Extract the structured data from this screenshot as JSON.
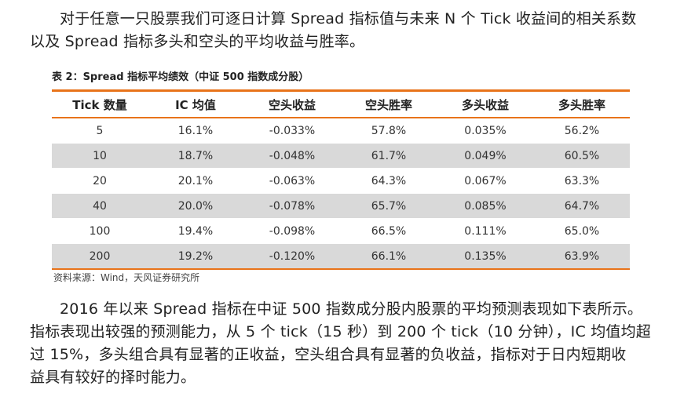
{
  "intro": {
    "line1": "对于任意一只股票我们可逐日计算 Spread 指标值与未来 N 个 Tick 收益间的相关系数",
    "line2": "以及 Spread 指标多头和空头的平均收益与胜率。"
  },
  "table": {
    "caption": "表 2：Spread 指标平均绩效（中证 500 指数成分股）",
    "headers": [
      "Tick 数量",
      "IC 均值",
      "空头收益",
      "空头胜率",
      "多头收益",
      "多头胜率"
    ],
    "rows": [
      [
        "5",
        "16.1%",
        "-0.033%",
        "57.8%",
        "0.035%",
        "56.2%"
      ],
      [
        "10",
        "18.7%",
        "-0.048%",
        "61.7%",
        "0.049%",
        "60.5%"
      ],
      [
        "20",
        "20.1%",
        "-0.063%",
        "64.3%",
        "0.067%",
        "63.3%"
      ],
      [
        "40",
        "20.0%",
        "-0.078%",
        "65.7%",
        "0.085%",
        "64.7%"
      ],
      [
        "100",
        "19.4%",
        "-0.098%",
        "66.5%",
        "0.111%",
        "65.0%"
      ],
      [
        "200",
        "19.2%",
        "-0.120%",
        "66.1%",
        "0.135%",
        "63.9%"
      ]
    ],
    "source": "资料来源：Wind，天风证券研究所"
  },
  "summary": {
    "line1": "2016 年以来 Spread 指标在中证 500 指数成分股内股票的平均预测表现如下表所示。",
    "line2": "指标表现出较强的预测能力，从 5 个 tick（15 秒）到 200 个 tick（10 分钟），IC 均值均超",
    "line3": "过 15%，多头组合具有显著的正收益，空头组合具有显著的负收益，指标对于日内短期收",
    "line4": "益具有较好的择时能力。"
  },
  "colors": {
    "accent_rule": "#e8731a",
    "shaded_row": "#d9d9d9"
  }
}
